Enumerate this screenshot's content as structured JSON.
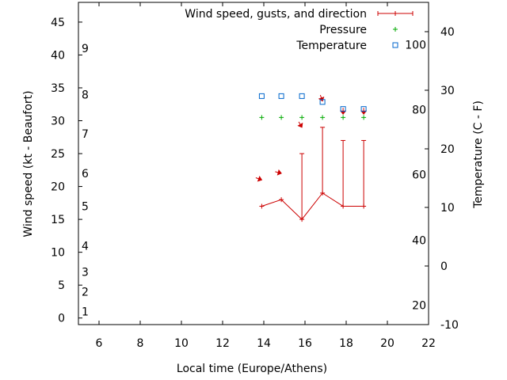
{
  "chart_data": {
    "type": "line",
    "xlabel": "Local time (Europe/Athens)",
    "ylabel": "Wind speed (kt - Beaufort)",
    "y2label": "Temperature (C - F)",
    "xlim": [
      5,
      22
    ],
    "ylim": [
      -1,
      48
    ],
    "y2lim": [
      -10,
      45
    ],
    "x_ticks": [
      "6",
      "8",
      "10",
      "12",
      "14",
      "16",
      "18",
      "20",
      "22"
    ],
    "y_ticks": [
      "0",
      "5",
      "10",
      "15",
      "20",
      "25",
      "30",
      "35",
      "40",
      "45"
    ],
    "y2_ticks": [
      "-10",
      "0",
      "10",
      "20",
      "30",
      "40"
    ],
    "beaufort_labels": [
      {
        "text": "1",
        "kt": 1
      },
      {
        "text": "2",
        "kt": 4
      },
      {
        "text": "3",
        "kt": 7
      },
      {
        "text": "4",
        "kt": 11
      },
      {
        "text": "5",
        "kt": 17
      },
      {
        "text": "6",
        "kt": 22
      },
      {
        "text": "7",
        "kt": 28
      },
      {
        "text": "8",
        "kt": 34
      },
      {
        "text": "9",
        "kt": 41
      }
    ],
    "fahrenheit_labels": [
      {
        "text": "20",
        "celsius": -6.7
      },
      {
        "text": "40",
        "celsius": 4.4
      },
      {
        "text": "60",
        "celsius": 15.6
      },
      {
        "text": "80",
        "celsius": 26.7
      },
      {
        "text": "100",
        "celsius": 37.8
      }
    ],
    "legend": [
      {
        "label": "Wind speed, gusts, and direction",
        "color": "#cc0000"
      },
      {
        "label": "Pressure",
        "color": "#00aa00"
      },
      {
        "label": "Temperature",
        "color": "#0066cc"
      }
    ],
    "series": {
      "wind": {
        "x": [
          13.9,
          14.85,
          15.85,
          16.85,
          17.85,
          18.85
        ],
        "speed": [
          17,
          18,
          15,
          19,
          17,
          17
        ],
        "gust": [
          17,
          18,
          25,
          29,
          27,
          27
        ]
      },
      "direction_arrows": {
        "x": [
          13.9,
          14.85,
          15.85,
          16.85,
          17.85,
          18.85
        ],
        "y": [
          21,
          22,
          29,
          33,
          31,
          31
        ],
        "angle_deg": [
          70,
          75,
          30,
          20,
          0,
          0
        ]
      },
      "pressure": {
        "x": [
          13.9,
          14.85,
          15.85,
          16.85,
          17.85,
          18.85
        ],
        "y": [
          30.5,
          30.5,
          30.5,
          30.5,
          30.5,
          30.5
        ]
      },
      "temperature": {
        "x": [
          13.9,
          14.85,
          15.85,
          16.85,
          17.85,
          18.85
        ],
        "celsius": [
          29,
          29,
          29,
          28,
          26.8,
          26.8
        ]
      }
    }
  }
}
